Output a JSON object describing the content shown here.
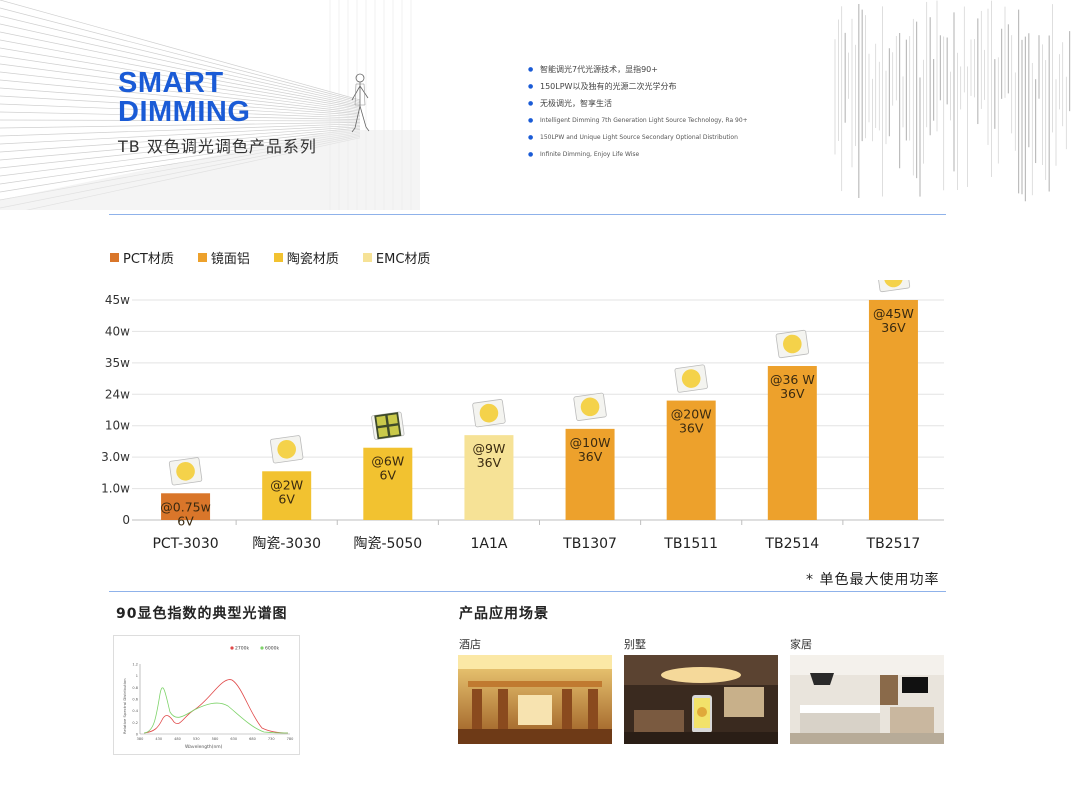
{
  "header": {
    "brand_line1": "SMART",
    "brand_line2": "DIMMING",
    "subtitle": "TB 双色调光调色产品系列",
    "features": [
      "智能调光7代光源技术，显指90+",
      "150LPW以及独有的光源二次光学分布",
      "无极调光，智享生活",
      "Intelligent Dimming 7th Generation Light Source Technology, Ra 90+",
      "150LPW and Unique Light Source Secondary Optional Distribution",
      "Infinite Dimming, Enjoy Life Wise"
    ]
  },
  "legend": [
    {
      "label": "PCT材质",
      "color": "#d9762a"
    },
    {
      "label": "镜面铝",
      "color": "#eda12c"
    },
    {
      "label": "陶瓷材质",
      "color": "#f2c230"
    },
    {
      "label": "EMC材质",
      "color": "#f6e296"
    }
  ],
  "chart_data": {
    "type": "bar",
    "y_tick_labels": [
      "0",
      "1.0w",
      "3.0w",
      "10w",
      "24w",
      "35w",
      "40w",
      "45w"
    ],
    "y_scale": "categorical-ticks (uneven, non-linear)",
    "grid": true,
    "categories": [
      "PCT-3030",
      "陶瓷-3030",
      "陶瓷-5050",
      "1A1A",
      "TB1307",
      "TB1511",
      "TB2514",
      "TB2517"
    ],
    "values": [
      0.75,
      2,
      6,
      9,
      10,
      20,
      36,
      45
    ],
    "value_unit": "W",
    "voltage": [
      6,
      6,
      6,
      36,
      36,
      36,
      36,
      36
    ],
    "bar_labels": [
      [
        "@0.75w",
        "6V"
      ],
      [
        "@2W",
        "6V"
      ],
      [
        "@6W",
        "6V"
      ],
      [
        "@9W",
        "36V"
      ],
      [
        "@10W",
        "36V"
      ],
      [
        "@20W",
        "36V"
      ],
      [
        "@36  W",
        "36V"
      ],
      [
        "@45W",
        "36V"
      ]
    ],
    "bar_tick_level": [
      0.85,
      1.55,
      2.3,
      2.7,
      2.9,
      3.8,
      4.9,
      7.0
    ],
    "bar_colors": [
      "#d9762a",
      "#f2c230",
      "#f2c230",
      "#f6e296",
      "#eda12c",
      "#eda12c",
      "#eda12c",
      "#eda12c"
    ],
    "bar_material": [
      "PCT材质",
      "陶瓷材质",
      "陶瓷材质",
      "EMC材质",
      "镜面铝",
      "镜面铝",
      "镜面铝",
      "镜面铝"
    ]
  },
  "note": "*  单色最大使用功率",
  "spectrum": {
    "title": "90显色指数的典型光谱图",
    "series": [
      {
        "name": "2700k",
        "color": "#e04848"
      },
      {
        "name": "6000k",
        "color": "#7ed36a"
      }
    ],
    "ylabel": "Relative Spectral Distribution",
    "xlabel": "Wavelength(nm)",
    "x_ticks": [
      "380",
      "430",
      "480",
      "530",
      "580",
      "630",
      "680",
      "730",
      "780"
    ],
    "y_ticks": [
      "0",
      "0.2",
      "0.4",
      "0.6",
      "0.8",
      "1",
      "1.2"
    ]
  },
  "applications": {
    "title": "产品应用场景",
    "scenes": [
      "酒店",
      "别墅",
      "家居"
    ]
  }
}
